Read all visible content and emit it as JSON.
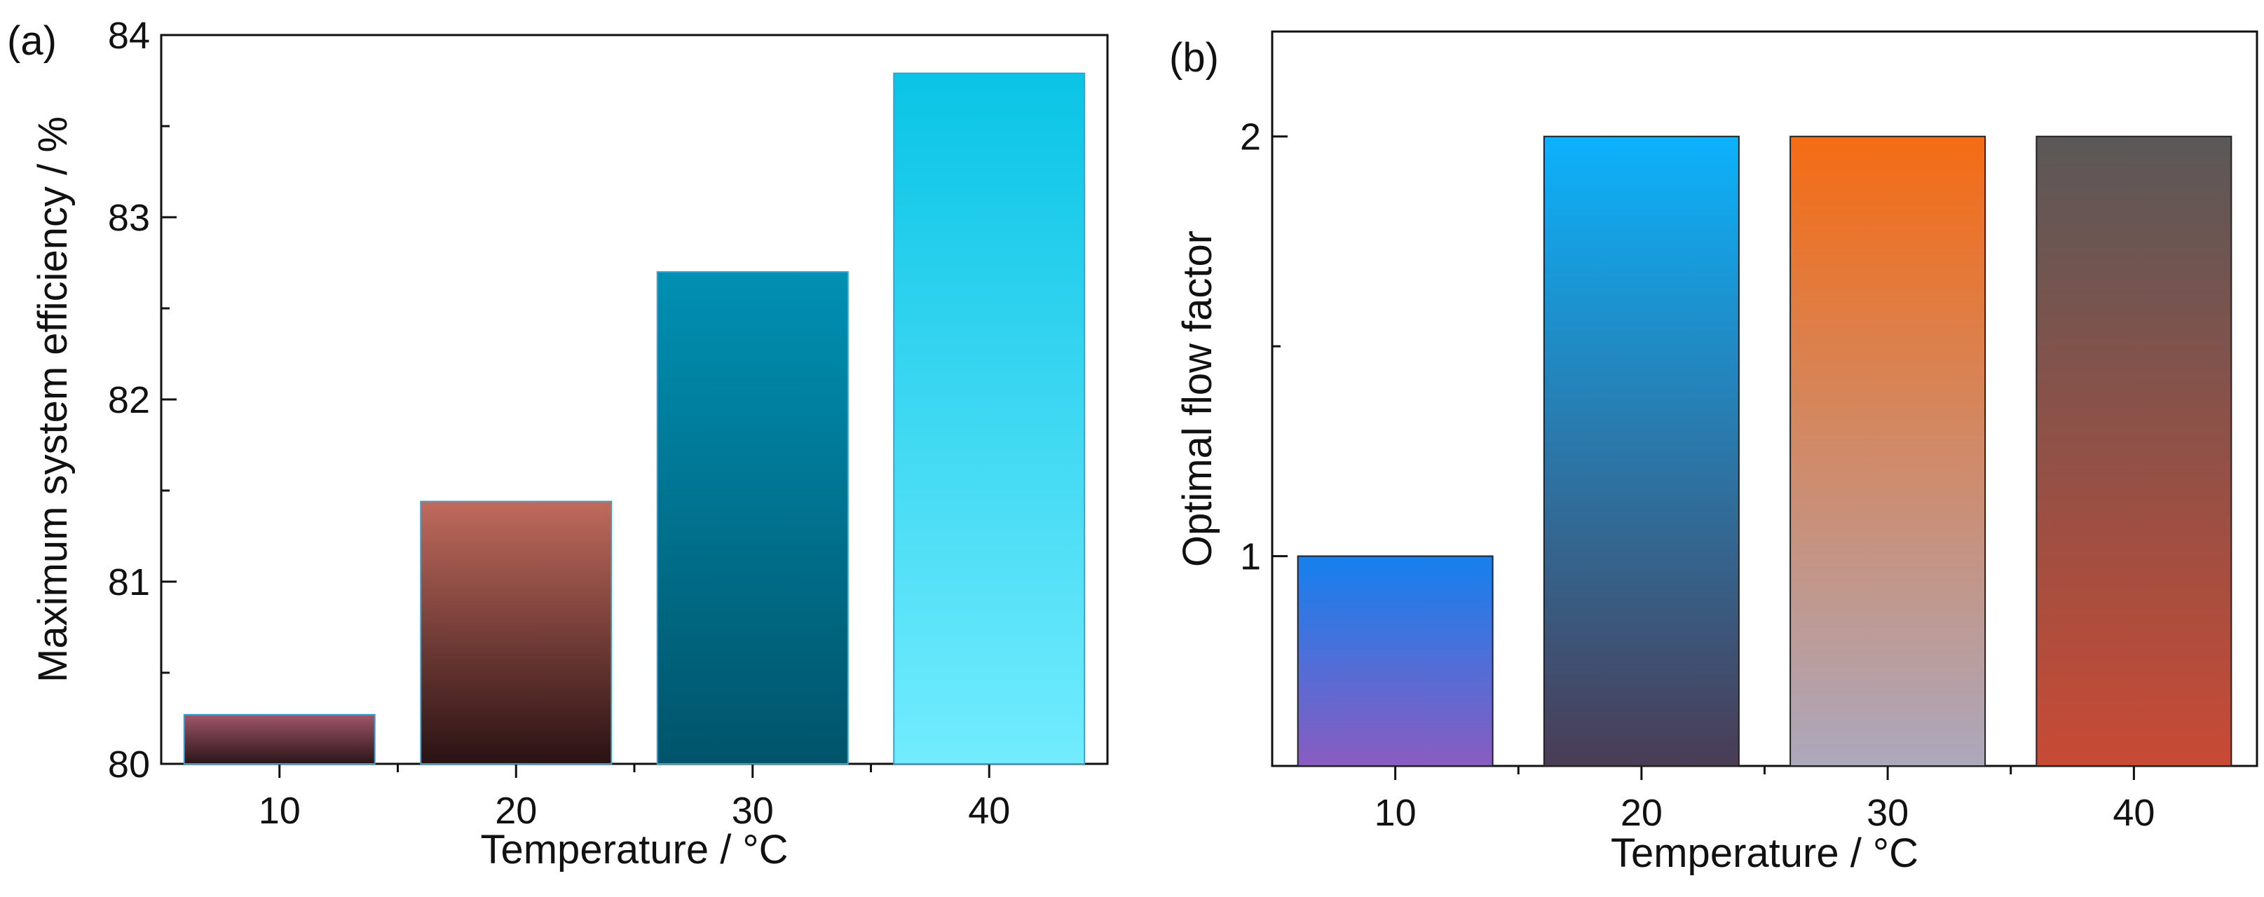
{
  "chart_data": [
    {
      "panel_label": "(a)",
      "type": "bar",
      "categories": [
        "10",
        "20",
        "30",
        "40"
      ],
      "values": [
        80.27,
        81.44,
        82.7,
        83.79
      ],
      "xlabel": "Temperature / °C",
      "ylabel": "Maximum system efficiency / %",
      "ylim": [
        80,
        84
      ],
      "yticks": [
        "80",
        "81",
        "82",
        "83",
        "84"
      ],
      "legend": "none",
      "grid": false,
      "bar_gradients": [
        [
          "#a0566b",
          "#2b1418"
        ],
        [
          "#c06a5c",
          "#2a1214"
        ],
        [
          "#0090b3",
          "#00546a"
        ],
        [
          "#0ac4e6",
          "#72ecfe"
        ]
      ],
      "bar_border": "#3aa0d0"
    },
    {
      "panel_label": "(b)",
      "type": "bar",
      "categories": [
        "10",
        "20",
        "30",
        "40"
      ],
      "values": [
        1,
        2,
        2,
        2
      ],
      "xlabel": "Temperature / °C",
      "ylabel": "Optimal flow factor",
      "ylim": [
        0.5,
        2.25
      ],
      "yticks": [
        "1",
        "2"
      ],
      "legend": "none",
      "grid": false,
      "bar_gradients": [
        [
          "#1580ee",
          "#8a5cc0"
        ],
        [
          "#0cb2fc",
          "#4a3c55"
        ],
        [
          "#f46c14",
          "#aca8bc"
        ],
        [
          "#5a5858",
          "#c84a35"
        ]
      ],
      "bar_border": "#222222"
    }
  ]
}
